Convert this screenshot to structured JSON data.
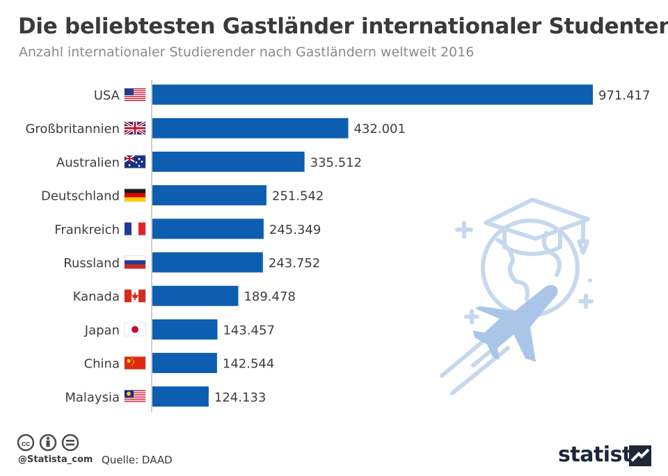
{
  "header": {
    "title": "Die beliebtesten Gastländer internationaler Studenten",
    "subtitle": "Anzahl internationaler Studierender nach Gastländern weltweit 2016"
  },
  "chart_data": {
    "type": "bar",
    "orientation": "horizontal",
    "title": "Die beliebtesten Gastländer internationaler Studenten",
    "subtitle": "Anzahl internationaler Studierender nach Gastländern weltweit 2016",
    "categories": [
      "USA",
      "Großbritannien",
      "Australien",
      "Deutschland",
      "Frankreich",
      "Russland",
      "Kanada",
      "Japan",
      "China",
      "Malaysia"
    ],
    "values": [
      971417,
      432001,
      335512,
      251542,
      245349,
      243752,
      189478,
      143457,
      142544,
      124133
    ],
    "value_labels": [
      "971.417",
      "432.001",
      "335.512",
      "251.542",
      "245.349",
      "243.752",
      "189.478",
      "143.457",
      "142.544",
      "124.133"
    ],
    "flags": [
      "us-flag-icon",
      "gb-flag-icon",
      "au-flag-icon",
      "de-flag-icon",
      "fr-flag-icon",
      "ru-flag-icon",
      "ca-flag-icon",
      "jp-flag-icon",
      "cn-flag-icon",
      "my-flag-icon"
    ],
    "xlim": [
      0,
      1000000
    ],
    "grid": false,
    "legend": "none",
    "bar_color": "#0d5eb0"
  },
  "footer": {
    "handle": "@Statista_com",
    "source": "Quelle: DAAD",
    "brand": "statista"
  },
  "colors": {
    "bar": "#0d5eb0",
    "title": "#3a3a3a",
    "subtitle": "#8a8a8a",
    "decoration": "#c5d8ee",
    "brand": "#1c2838"
  }
}
